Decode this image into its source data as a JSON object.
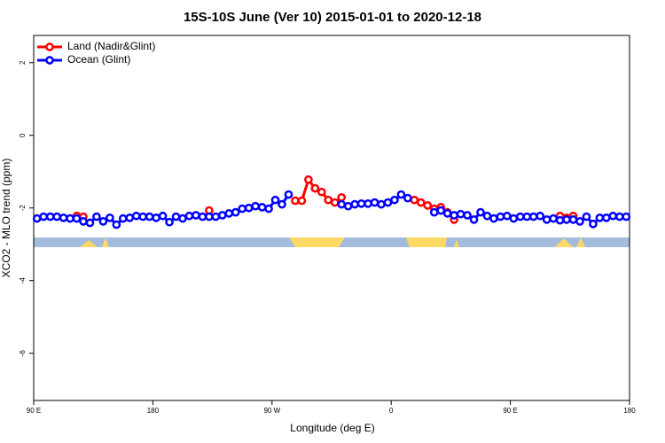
{
  "chart_data": {
    "type": "line",
    "title": "15S-10S June (Ver 10)   2015-01-01 to 2020-12-18",
    "xlabel": "Longitude (deg E)",
    "ylabel": "XCO2 - MLO trend (ppm)",
    "xlim": [
      90,
      540
    ],
    "ylim": [
      -7.3,
      2.75
    ],
    "xticks": [
      {
        "value": 90,
        "label": "90 E"
      },
      180,
      {
        "value": 270,
        "label": "90 W"
      },
      {
        "value": 360,
        "label": "0"
      },
      {
        "value": 450,
        "label": "90 E"
      },
      {
        "value": 540,
        "label": "180"
      }
    ],
    "yticks": [
      2,
      0,
      -2,
      -4,
      -6
    ],
    "legend": "top-left",
    "x": [
      92.5,
      97.5,
      102.5,
      107.5,
      112.5,
      117.5,
      122.5,
      127.5,
      132.5,
      137.5,
      142.5,
      147.5,
      152.5,
      157.5,
      162.5,
      167.5,
      172.5,
      177.5,
      182.5,
      187.5,
      192.5,
      197.5,
      202.5,
      207.5,
      212.5,
      217.5,
      222.5,
      227.5,
      232.5,
      237.5,
      242.5,
      247.5,
      252.5,
      257.5,
      262.5,
      267.5,
      272.5,
      277.5,
      282.5,
      287.5,
      292.5,
      297.5,
      302.5,
      307.5,
      312.5,
      317.5,
      322.5,
      327.5,
      332.5,
      337.5,
      342.5,
      347.5,
      352.5,
      357.5,
      362.5,
      367.5,
      372.5,
      377.5,
      382.5,
      387.5,
      392.5,
      397.5,
      402.5,
      407.5,
      412.5,
      417.5,
      422.5,
      427.5,
      432.5,
      437.5,
      442.5,
      447.5,
      452.5,
      457.5,
      462.5,
      467.5,
      472.5,
      477.5,
      482.5,
      487.5,
      492.5,
      497.5,
      502.5,
      507.5,
      512.5,
      517.5,
      522.5,
      527.5,
      532.5,
      537.5
    ],
    "series": [
      {
        "name": "Land (Nadir&Glint)",
        "color": "#ff0000",
        "values": [
          null,
          null,
          null,
          null,
          null,
          null,
          -2.22,
          -2.24,
          null,
          null,
          null,
          null,
          null,
          null,
          null,
          null,
          null,
          null,
          null,
          null,
          null,
          null,
          null,
          null,
          null,
          null,
          -2.07,
          null,
          null,
          null,
          null,
          null,
          null,
          null,
          null,
          null,
          null,
          null,
          null,
          -1.8,
          -1.8,
          -1.22,
          -1.46,
          -1.56,
          -1.78,
          -1.85,
          -1.71,
          null,
          null,
          null,
          null,
          null,
          null,
          null,
          null,
          null,
          null,
          -1.78,
          -1.85,
          -1.93,
          -2.02,
          -1.98,
          -2.12,
          -2.32,
          null,
          null,
          null,
          null,
          null,
          null,
          null,
          null,
          null,
          null,
          null,
          null,
          null,
          null,
          null,
          -2.22,
          -2.27,
          -2.22,
          null,
          null,
          null,
          null,
          null,
          null,
          null,
          null
        ]
      },
      {
        "name": "Ocean (Glint)",
        "color": "#0000ff",
        "values": [
          -2.29,
          -2.24,
          -2.24,
          -2.24,
          -2.27,
          -2.29,
          -2.29,
          -2.37,
          -2.41,
          -2.24,
          -2.37,
          -2.27,
          -2.46,
          -2.29,
          -2.27,
          -2.22,
          -2.24,
          -2.24,
          -2.27,
          -2.22,
          -2.39,
          -2.24,
          -2.29,
          -2.22,
          -2.2,
          -2.24,
          -2.24,
          -2.24,
          -2.2,
          -2.15,
          -2.12,
          -2.02,
          -2,
          -1.95,
          -1.98,
          -2.02,
          -1.78,
          -1.9,
          -1.63,
          null,
          null,
          null,
          null,
          null,
          null,
          null,
          -1.9,
          -1.95,
          -1.9,
          -1.88,
          -1.88,
          -1.85,
          -1.9,
          -1.85,
          -1.78,
          -1.63,
          -1.73,
          null,
          null,
          null,
          -2.12,
          -2.07,
          -2.15,
          -2.2,
          -2.17,
          -2.2,
          -2.32,
          -2.12,
          -2.22,
          -2.29,
          -2.24,
          -2.22,
          -2.29,
          -2.24,
          -2.24,
          -2.24,
          -2.22,
          -2.32,
          -2.29,
          -2.34,
          -2.32,
          -2.32,
          -2.37,
          -2.24,
          -2.44,
          -2.27,
          -2.27,
          -2.22,
          -2.24,
          -2.24
        ]
      }
    ]
  }
}
